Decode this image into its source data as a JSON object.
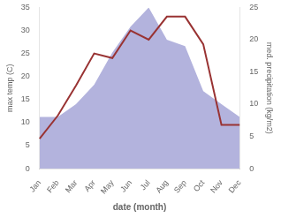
{
  "chart_data": {
    "type": "line",
    "xlabel": "date (month)",
    "ylabel": "max temp (C)",
    "y2label": "med. precipitation (kg/m2)",
    "categories": [
      "Jan",
      "Feb",
      "Mar",
      "Apr",
      "May",
      "Jun",
      "Jul",
      "Aug",
      "Sep",
      "Oct",
      "Nov",
      "Dec"
    ],
    "series": [
      {
        "type": "area",
        "axis": "y2",
        "color": "#b3b3dd",
        "values": [
          8.0,
          8.0,
          10.0,
          13.0,
          18.0,
          22.0,
          25.0,
          20.0,
          19.0,
          12.0,
          10.0,
          8.0
        ]
      },
      {
        "type": "line",
        "color": "#993333",
        "values": [
          6.5,
          11.5,
          18.0,
          25.0,
          24.0,
          30.0,
          28.0,
          33.0,
          33.0,
          27.0,
          9.5,
          9.5
        ]
      }
    ],
    "ylim": [
      0,
      35
    ],
    "yticks": [
      0,
      5,
      10,
      15,
      20,
      25,
      30,
      35
    ],
    "y2lim": [
      0,
      25
    ],
    "y2ticks": [
      0,
      5,
      10,
      15,
      20,
      25
    ],
    "grid": false
  }
}
